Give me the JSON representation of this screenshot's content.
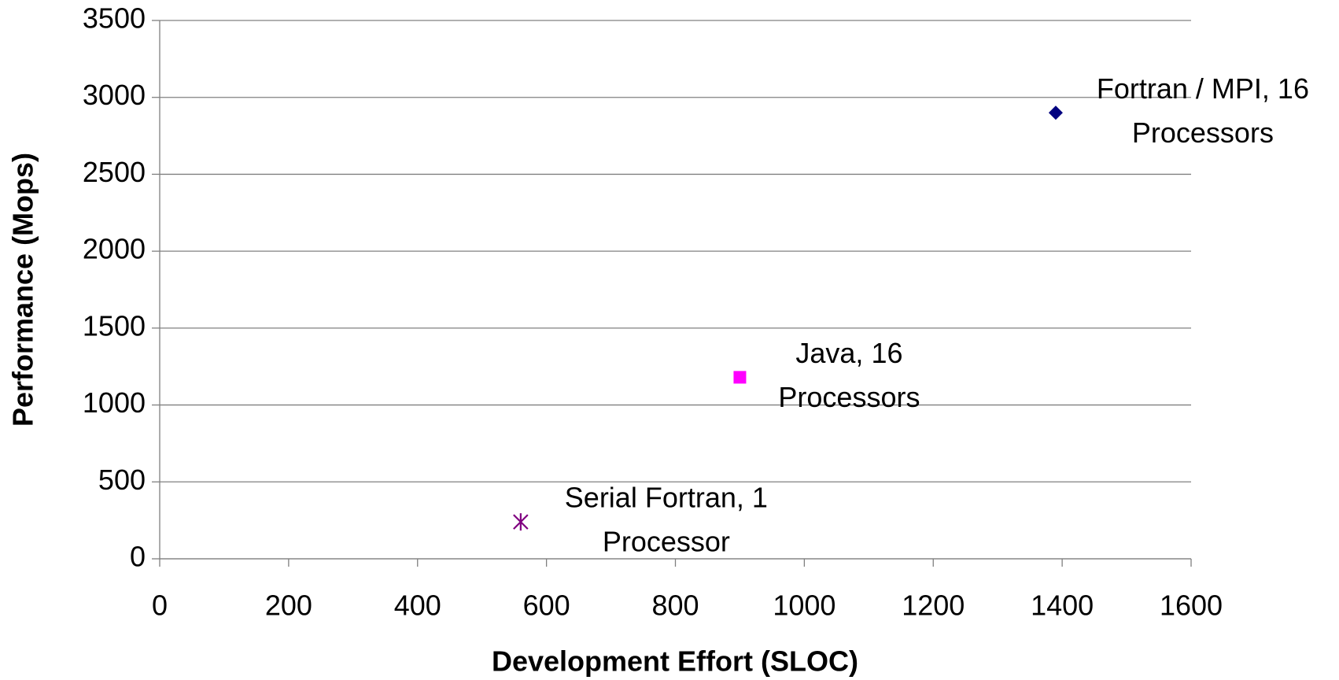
{
  "chart_data": {
    "type": "scatter",
    "xlabel": "Development Effort (SLOC)",
    "ylabel": "Performance (Mops)",
    "xlim": [
      0,
      1600
    ],
    "xticks": [
      0,
      200,
      400,
      600,
      800,
      1000,
      1200,
      1400,
      1600
    ],
    "ylim": [
      0,
      3500
    ],
    "yticks": [
      0,
      500,
      1000,
      1500,
      2000,
      2500,
      3000,
      3500
    ],
    "grid": true,
    "series": [
      {
        "label": [
          "Fortran / MPI, 16",
          "Processors"
        ],
        "marker": "diamond",
        "color": "#000080",
        "x": [
          1390
        ],
        "values": [
          2900
        ]
      },
      {
        "label": [
          "Java, 16",
          "Processors"
        ],
        "marker": "square",
        "color": "#ff00ff",
        "x": [
          900
        ],
        "values": [
          1180
        ]
      },
      {
        "label": [
          "Serial Fortran, 1",
          "Processor"
        ],
        "marker": "asterisk",
        "color": "#800080",
        "x": [
          560
        ],
        "values": [
          240
        ]
      }
    ]
  }
}
